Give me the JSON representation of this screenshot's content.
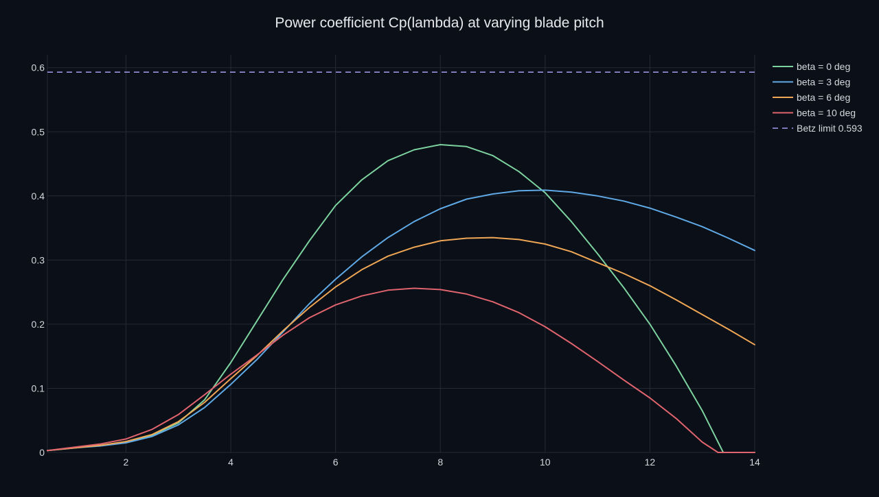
{
  "chart_data": {
    "type": "line",
    "title": "Power coefficient Cp(lambda) at varying blade pitch",
    "xlabel": "",
    "ylabel": "",
    "xlim": [
      0.5,
      14
    ],
    "ylim": [
      0,
      0.62
    ],
    "x_ticks": [
      2,
      4,
      6,
      8,
      10,
      12,
      14
    ],
    "x_tick_labels": [
      "2",
      "4",
      "6",
      "8",
      "10",
      "12",
      "14"
    ],
    "y_ticks": [
      0,
      0.1,
      0.2,
      0.3,
      0.4,
      0.5,
      0.6
    ],
    "y_tick_labels": [
      "0",
      "0.1",
      "0.2",
      "0.3",
      "0.4",
      "0.5",
      "0.6"
    ],
    "grid": true,
    "legend_position": "top-right-outside",
    "background": "#0b0f17",
    "grid_color": "#242a36",
    "text_color": "#d4d7dd",
    "series": [
      {
        "name": "beta = 0 deg",
        "color": "#7dd3a0",
        "dash": "solid",
        "x": [
          0.5,
          1,
          1.5,
          2,
          2.5,
          3,
          3.5,
          4,
          4.5,
          5,
          5.5,
          6,
          6.5,
          7,
          7.5,
          8,
          8.5,
          9,
          9.5,
          10,
          10.5,
          11,
          11.5,
          12,
          12.5,
          13,
          13.4,
          13.7,
          14
        ],
        "y": [
          0.003,
          0.007,
          0.011,
          0.016,
          0.027,
          0.046,
          0.082,
          0.14,
          0.205,
          0.27,
          0.33,
          0.385,
          0.425,
          0.455,
          0.472,
          0.48,
          0.477,
          0.463,
          0.438,
          0.405,
          0.36,
          0.31,
          0.257,
          0.2,
          0.135,
          0.065,
          0.0,
          0.0,
          0.0
        ]
      },
      {
        "name": "beta = 3 deg",
        "color": "#5fa9e6",
        "dash": "solid",
        "x": [
          0.5,
          1,
          1.5,
          2,
          2.5,
          3,
          3.5,
          4,
          4.5,
          5,
          5.5,
          6,
          6.5,
          7,
          7.5,
          8,
          8.5,
          9,
          9.5,
          10,
          10.5,
          11,
          11.5,
          12,
          12.5,
          13,
          13.5,
          14
        ],
        "y": [
          0.003,
          0.007,
          0.01,
          0.015,
          0.025,
          0.043,
          0.07,
          0.106,
          0.145,
          0.188,
          0.232,
          0.27,
          0.305,
          0.335,
          0.36,
          0.38,
          0.395,
          0.403,
          0.408,
          0.409,
          0.406,
          0.4,
          0.392,
          0.381,
          0.367,
          0.352,
          0.334,
          0.315
        ]
      },
      {
        "name": "beta = 6 deg",
        "color": "#f0a756",
        "dash": "solid",
        "x": [
          0.5,
          1,
          1.5,
          2,
          2.5,
          3,
          3.5,
          4,
          4.5,
          5,
          5.5,
          6,
          6.5,
          7,
          7.5,
          8,
          8.5,
          9,
          9.5,
          10,
          10.5,
          11,
          11.5,
          12,
          12.5,
          13,
          13.5,
          14
        ],
        "y": [
          0.003,
          0.007,
          0.011,
          0.017,
          0.028,
          0.048,
          0.078,
          0.115,
          0.151,
          0.19,
          0.226,
          0.258,
          0.285,
          0.306,
          0.32,
          0.33,
          0.334,
          0.335,
          0.332,
          0.325,
          0.313,
          0.296,
          0.279,
          0.26,
          0.238,
          0.215,
          0.192,
          0.168
        ]
      },
      {
        "name": "beta = 10 deg",
        "color": "#e0646e",
        "dash": "solid",
        "x": [
          0.5,
          1,
          1.5,
          2,
          2.5,
          3,
          3.5,
          4,
          4.5,
          5,
          5.5,
          6,
          6.5,
          7,
          7.5,
          8,
          8.5,
          9,
          9.5,
          10,
          10.5,
          11,
          11.5,
          12,
          12.5,
          13,
          13.3,
          13.6,
          14
        ],
        "y": [
          0.003,
          0.008,
          0.013,
          0.021,
          0.036,
          0.059,
          0.09,
          0.122,
          0.152,
          0.183,
          0.21,
          0.23,
          0.244,
          0.253,
          0.256,
          0.254,
          0.247,
          0.235,
          0.218,
          0.196,
          0.17,
          0.142,
          0.113,
          0.085,
          0.053,
          0.016,
          0.0,
          0.0,
          0.0
        ]
      },
      {
        "name": "Betz limit 0.593",
        "color": "#a39ff2",
        "dash": "dashed",
        "x": [
          0.5,
          14
        ],
        "y": [
          0.593,
          0.593
        ]
      }
    ]
  }
}
